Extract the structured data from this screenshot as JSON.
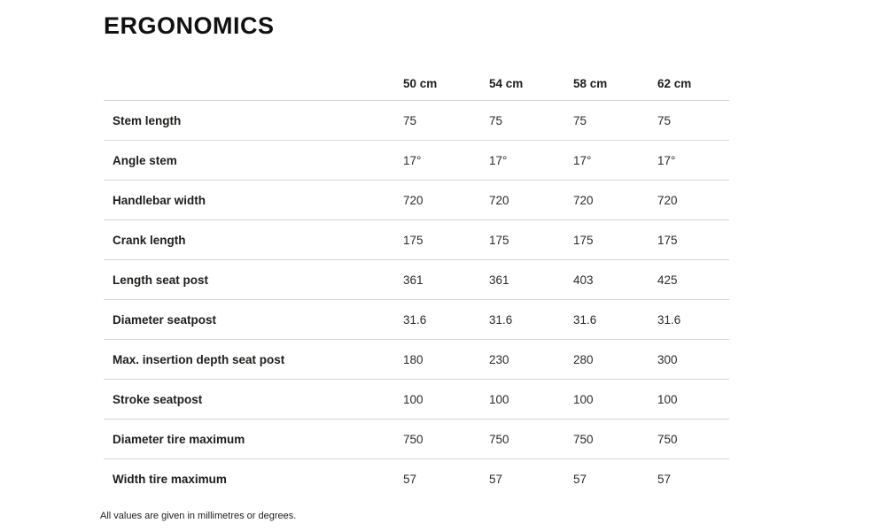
{
  "page": {
    "title": "ERGONOMICS",
    "footnote": "All values are given in millimetres or degrees."
  },
  "table": {
    "columns": [
      "50 cm",
      "54 cm",
      "58 cm",
      "62 cm"
    ],
    "rows": [
      {
        "label": "Stem length",
        "values": [
          "75",
          "75",
          "75",
          "75"
        ]
      },
      {
        "label": "Angle stem",
        "values": [
          "17°",
          "17°",
          "17°",
          "17°"
        ]
      },
      {
        "label": "Handlebar width",
        "values": [
          "720",
          "720",
          "720",
          "720"
        ]
      },
      {
        "label": "Crank length",
        "values": [
          "175",
          "175",
          "175",
          "175"
        ]
      },
      {
        "label": "Length seat post",
        "values": [
          "361",
          "361",
          "403",
          "425"
        ]
      },
      {
        "label": "Diameter seatpost",
        "values": [
          "31.6",
          "31.6",
          "31.6",
          "31.6"
        ]
      },
      {
        "label": "Max. insertion depth seat post",
        "values": [
          "180",
          "230",
          "280",
          "300"
        ]
      },
      {
        "label": "Stroke seatpost",
        "values": [
          "100",
          "100",
          "100",
          "100"
        ]
      },
      {
        "label": "Diameter tire maximum",
        "values": [
          "750",
          "750",
          "750",
          "750"
        ]
      },
      {
        "label": "Width tire maximum",
        "values": [
          "57",
          "57",
          "57",
          "57"
        ]
      }
    ]
  },
  "colors": {
    "text": "#1d1d1b",
    "divider": "#d6d6d6",
    "background": "#ffffff"
  }
}
